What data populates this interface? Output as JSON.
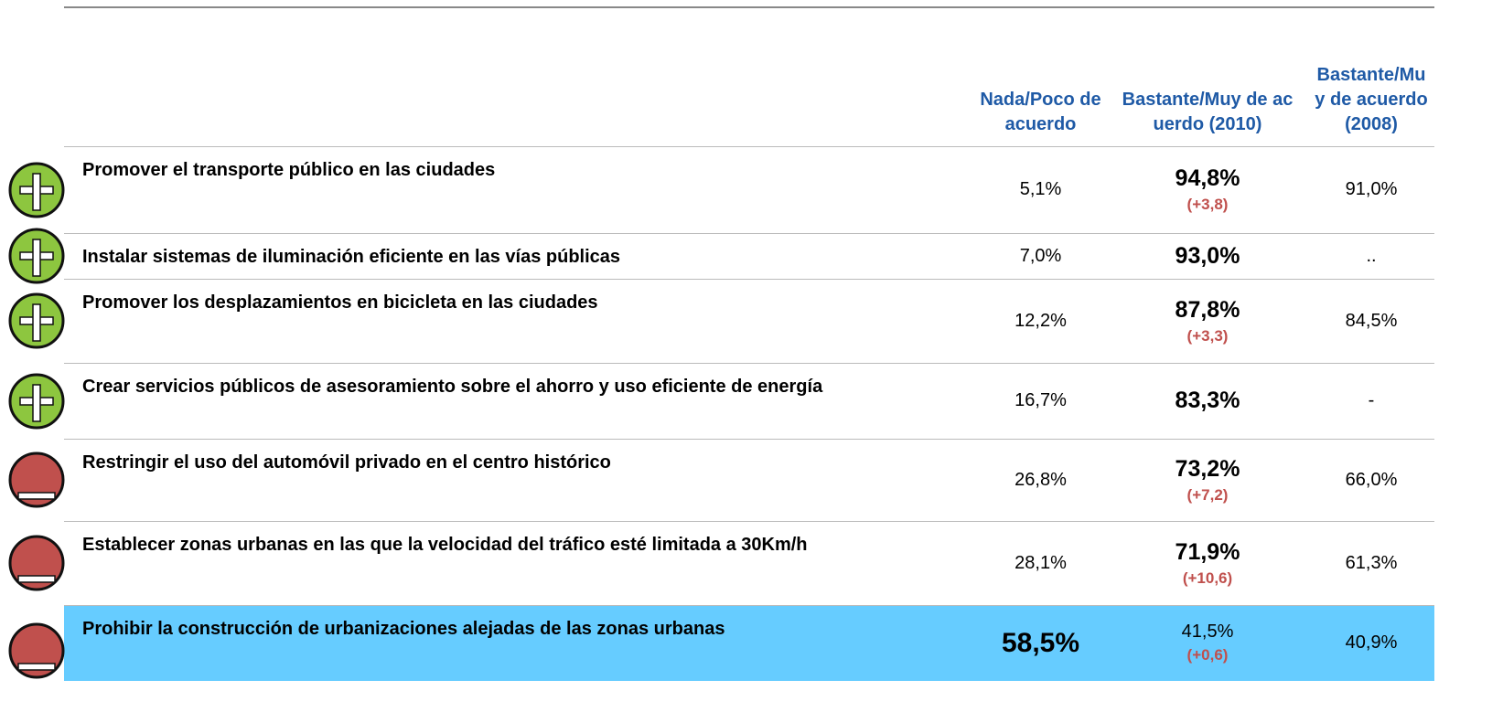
{
  "table": {
    "header": [
      "Nada/Poco de acuerdo",
      "Bastante/Muy de acuerdo (2010)",
      "Bastante/Muy de acuerdo (2008)"
    ],
    "bold_column": 1,
    "rows": [
      {
        "icon": "plus",
        "label": "Promover el transporte público en las ciudades",
        "nada": "5,1%",
        "b2010": "94,8%",
        "change": "(+3,8)",
        "b2008": "91,0%"
      },
      {
        "icon": "plus",
        "label": "Instalar sistemas de iluminación eficiente en las vías públicas",
        "nada": "7,0%",
        "b2010": "93,0%",
        "b2008": ".."
      },
      {
        "icon": "plus",
        "label": "Promover los desplazamientos en bicicleta en las ciudades",
        "nada": "12,2%",
        "b2010": "87,8%",
        "change": "(+3,3)",
        "b2008": "84,5%"
      },
      {
        "icon": "plus",
        "label": "Crear servicios públicos de asesoramiento sobre el ahorro y uso eficiente de energía",
        "nada": "16,7%",
        "b2010": "83,3%",
        "b2008": "-"
      },
      {
        "icon": "minus",
        "label": "Restringir el uso del automóvil privado en el centro histórico",
        "nada": "26,8%",
        "b2010": "73,2%",
        "change": "(+7,2)",
        "b2008": "66,0%"
      },
      {
        "icon": "minus",
        "label": "Establecer zonas urbanas en las que la velocidad del tráfico esté limitada a 30Km/h",
        "nada": "28,1%",
        "b2010": "71,9%",
        "change": "(+10,6)",
        "b2008": "61,3%"
      },
      {
        "icon": "minus",
        "highlight": true,
        "bold_column": 0,
        "label": "Prohibir la construcción de urbanizaciones alejadas de las zonas urbanas",
        "nada": "58,5%",
        "b2010": "41,5%",
        "change": "(+0,6)",
        "b2008": "40,9%"
      }
    ]
  }
}
